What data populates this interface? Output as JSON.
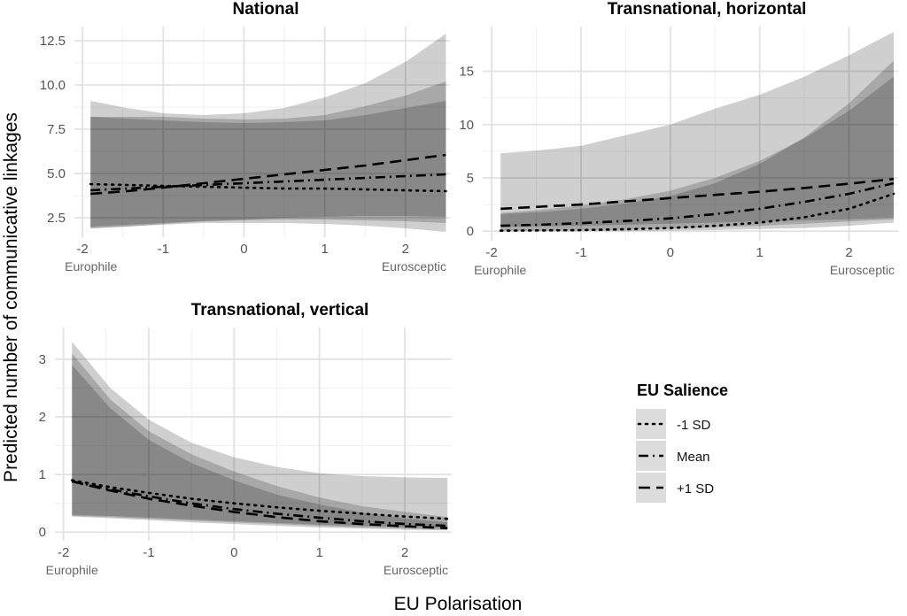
{
  "figure": {
    "xlabel": "EU Polarisation",
    "ylabel": "Predicted number of communicative linkages",
    "x_end_labels": {
      "left": "Europhile",
      "right": "Eurosceptic"
    }
  },
  "legend": {
    "title": "EU Salience",
    "entries": [
      {
        "label": "-1 SD",
        "linestyle": "dotted"
      },
      {
        "label": "Mean",
        "linestyle": "dashdot"
      },
      {
        "label": "+1 SD",
        "linestyle": "dashed"
      }
    ]
  },
  "chart_data": [
    {
      "type": "line",
      "title": "National",
      "xlim": [
        -2.1,
        2.55
      ],
      "ylim": [
        1.4,
        13.3
      ],
      "xticks": [
        -2,
        -1,
        0,
        1,
        2
      ],
      "yticks": [
        2.5,
        5.0,
        7.5,
        10.0,
        12.5
      ],
      "ytick_labels": [
        "2.5",
        "5.0",
        "7.5",
        "10.0",
        "12.5"
      ],
      "x": [
        -1.9,
        -1.45,
        -1,
        -0.5,
        0,
        0.5,
        1,
        1.5,
        2,
        2.5
      ],
      "series": [
        {
          "name": "-1 SD",
          "style": "dotted",
          "values": [
            4.4,
            4.35,
            4.3,
            4.25,
            4.2,
            4.15,
            4.15,
            4.1,
            4.05,
            4.0
          ],
          "ci_low": [
            1.9,
            2.0,
            2.1,
            2.2,
            2.2,
            2.2,
            2.15,
            2.05,
            1.9,
            1.7
          ],
          "ci_high": [
            9.1,
            8.7,
            8.4,
            8.3,
            8.4,
            8.7,
            9.3,
            10.1,
            11.3,
            12.9
          ]
        },
        {
          "name": "Mean",
          "style": "dashdot",
          "values": [
            4.05,
            4.15,
            4.25,
            4.35,
            4.45,
            4.55,
            4.65,
            4.75,
            4.85,
            4.95
          ],
          "ci_low": [
            2.0,
            2.1,
            2.2,
            2.3,
            2.35,
            2.4,
            2.4,
            2.35,
            2.3,
            2.2
          ],
          "ci_high": [
            8.2,
            8.2,
            8.2,
            8.1,
            8.05,
            8.1,
            8.3,
            8.8,
            9.4,
            10.2
          ]
        },
        {
          "name": "+1 SD",
          "style": "dashed",
          "values": [
            3.85,
            4.0,
            4.2,
            4.45,
            4.7,
            4.95,
            5.2,
            5.45,
            5.75,
            6.05
          ],
          "ci_low": [
            1.9,
            2.0,
            2.15,
            2.3,
            2.4,
            2.5,
            2.55,
            2.6,
            2.6,
            2.55
          ],
          "ci_high": [
            8.2,
            8.1,
            8.0,
            7.9,
            7.85,
            7.9,
            8.0,
            8.3,
            8.7,
            9.1
          ]
        }
      ]
    },
    {
      "type": "line",
      "title": "Transnational, horizontal",
      "xlim": [
        -2.1,
        2.55
      ],
      "ylim": [
        -0.9,
        19.2
      ],
      "xticks": [
        -2,
        -1,
        0,
        1,
        2
      ],
      "yticks": [
        0,
        5,
        10,
        15
      ],
      "ytick_labels": [
        "0",
        "5",
        "10",
        "15"
      ],
      "x": [
        -1.9,
        -1.45,
        -1,
        -0.5,
        0,
        0.5,
        1,
        1.5,
        2,
        2.5
      ],
      "series": [
        {
          "name": "-1 SD",
          "style": "dotted",
          "values": [
            0.05,
            0.07,
            0.1,
            0.18,
            0.3,
            0.5,
            0.8,
            1.3,
            2.1,
            3.5
          ],
          "ci_low": [
            0.0,
            0.0,
            0.0,
            0.0,
            0.05,
            0.1,
            0.2,
            0.3,
            0.5,
            0.8
          ],
          "ci_high": [
            1.6,
            1.8,
            2.1,
            2.6,
            3.3,
            4.5,
            6.3,
            8.8,
            12.0,
            16.0
          ]
        },
        {
          "name": "Mean",
          "style": "dashdot",
          "values": [
            0.5,
            0.6,
            0.75,
            0.95,
            1.2,
            1.6,
            2.1,
            2.75,
            3.5,
            4.5
          ],
          "ci_low": [
            0.05,
            0.07,
            0.1,
            0.15,
            0.25,
            0.35,
            0.5,
            0.7,
            0.9,
            1.1
          ],
          "ci_high": [
            1.7,
            2.0,
            2.4,
            3.0,
            3.8,
            5.0,
            6.6,
            8.7,
            11.3,
            14.5
          ]
        },
        {
          "name": "+1 SD",
          "style": "dashed",
          "values": [
            2.1,
            2.3,
            2.5,
            2.8,
            3.1,
            3.4,
            3.7,
            4.05,
            4.45,
            4.9
          ],
          "ci_low": [
            0.4,
            0.45,
            0.5,
            0.6,
            0.7,
            0.8,
            0.9,
            1.0,
            1.1,
            1.25
          ],
          "ci_high": [
            7.3,
            7.6,
            8.0,
            9.0,
            10.0,
            11.5,
            12.8,
            14.5,
            16.5,
            18.7
          ]
        }
      ]
    },
    {
      "type": "line",
      "title": "Transnational, vertical",
      "xlim": [
        -2.1,
        2.55
      ],
      "ylim": [
        -0.15,
        3.55
      ],
      "xticks": [
        -2,
        -1,
        0,
        1,
        2
      ],
      "yticks": [
        0,
        1,
        2,
        3
      ],
      "ytick_labels": [
        "0",
        "1",
        "2",
        "3"
      ],
      "x": [
        -1.9,
        -1.45,
        -1,
        -0.5,
        0,
        0.5,
        1,
        1.5,
        2,
        2.5
      ],
      "series": [
        {
          "name": "-1 SD",
          "style": "dotted",
          "values": [
            0.9,
            0.78,
            0.68,
            0.58,
            0.5,
            0.43,
            0.37,
            0.32,
            0.27,
            0.23
          ],
          "ci_low": [
            0.3,
            0.28,
            0.25,
            0.22,
            0.19,
            0.16,
            0.13,
            0.11,
            0.09,
            0.07
          ],
          "ci_high": [
            3.3,
            2.5,
            1.95,
            1.55,
            1.3,
            1.13,
            1.02,
            0.97,
            0.95,
            0.94
          ]
        },
        {
          "name": "Mean",
          "style": "dashdot",
          "values": [
            0.88,
            0.74,
            0.62,
            0.5,
            0.4,
            0.32,
            0.25,
            0.19,
            0.14,
            0.11
          ],
          "ci_low": [
            0.28,
            0.26,
            0.23,
            0.2,
            0.17,
            0.14,
            0.11,
            0.08,
            0.06,
            0.04
          ],
          "ci_high": [
            3.1,
            2.3,
            1.75,
            1.35,
            1.05,
            0.8,
            0.6,
            0.45,
            0.35,
            0.26
          ]
        },
        {
          "name": "+1 SD",
          "style": "dashed",
          "values": [
            0.88,
            0.72,
            0.58,
            0.46,
            0.35,
            0.26,
            0.19,
            0.14,
            0.1,
            0.07
          ],
          "ci_low": [
            0.27,
            0.24,
            0.21,
            0.17,
            0.14,
            0.11,
            0.08,
            0.06,
            0.04,
            0.03
          ],
          "ci_high": [
            2.9,
            2.15,
            1.6,
            1.2,
            0.9,
            0.65,
            0.48,
            0.34,
            0.24,
            0.17
          ]
        }
      ]
    }
  ]
}
